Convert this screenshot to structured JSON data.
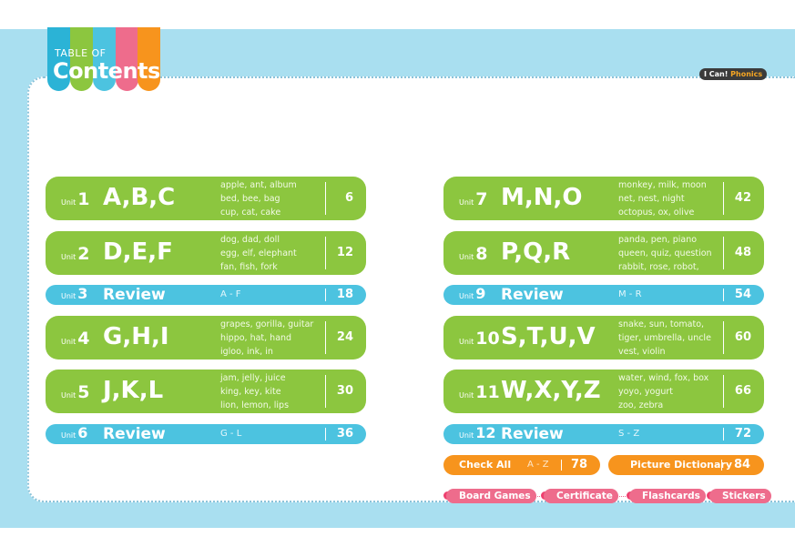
{
  "header": {
    "title_small": "TABLE OF",
    "title_big": "Contents",
    "brand_a": "I Can! ",
    "brand_b": "Phonics"
  },
  "left": {
    "u1": {
      "unit": "Unit",
      "num": "1",
      "letters": "A,B,C",
      "w1": "apple, ant, album",
      "w2": "bed, bee, bag",
      "w3": "cup, cat, cake",
      "page": "6"
    },
    "u2": {
      "unit": "Unit",
      "num": "2",
      "letters": "D,E,F",
      "w1": "dog, dad, doll",
      "w2": "egg, elf, elephant",
      "w3": "fan, fish, fork",
      "page": "12"
    },
    "u3": {
      "unit": "Unit",
      "num": "3",
      "letters": "Review",
      "range": "A - F",
      "page": "18"
    },
    "u4": {
      "unit": "Unit",
      "num": "4",
      "letters": "G,H,I",
      "w1": "grapes, gorilla, guitar",
      "w2": "hippo, hat, hand",
      "w3": "igloo, ink, in",
      "page": "24"
    },
    "u5": {
      "unit": "Unit",
      "num": "5",
      "letters": "J,K,L",
      "w1": "jam, jelly, juice",
      "w2": "king, key, kite",
      "w3": "lion, lemon, lips",
      "page": "30"
    },
    "u6": {
      "unit": "Unit",
      "num": "6",
      "letters": "Review",
      "range": "G - L",
      "page": "36"
    }
  },
  "right": {
    "u7": {
      "unit": "Unit",
      "num": "7",
      "letters": "M,N,O",
      "w1": "monkey, milk, moon",
      "w2": "net, nest, night",
      "w3": "octopus, ox, olive",
      "page": "42"
    },
    "u8": {
      "unit": "Unit",
      "num": "8",
      "letters": "P,Q,R",
      "w1": "panda, pen, piano",
      "w2": "queen, quiz, question",
      "w3": "rabbit, rose, robot,",
      "page": "48"
    },
    "u9": {
      "unit": "Unit",
      "num": "9",
      "letters": "Review",
      "range": "M - R",
      "page": "54"
    },
    "u10": {
      "unit": "Unit",
      "num": "10",
      "letters": "S,T,U,V",
      "w1": "snake, sun, tomato,",
      "w2": "tiger, umbrella, uncle",
      "w3": "vest, violin",
      "page": "60"
    },
    "u11": {
      "unit": "Unit",
      "num": "11",
      "letters": "W,X,Y,Z",
      "w1": "water, wind, fox, box",
      "w2": "yoyo, yogurt",
      "w3": "zoo, zebra",
      "page": "66"
    },
    "u12": {
      "unit": "Unit",
      "num": "12",
      "letters": "Review",
      "range": "S - Z",
      "page": "72"
    }
  },
  "extras": {
    "check_all": "Check All",
    "check_range": "A - Z",
    "check_page": "78",
    "picture_dictionary": "Picture Dictionary",
    "dict_page": "84"
  },
  "tabs": {
    "t1": "Board Games",
    "t2": "Certificate",
    "t3": "Flashcards",
    "t4": "Stickers"
  },
  "colors": {
    "green": "#8cc63f",
    "blue": "#4cc3e0",
    "orange": "#f7941d",
    "pink": "#ee6c8c",
    "frame": "#a9dff0"
  }
}
